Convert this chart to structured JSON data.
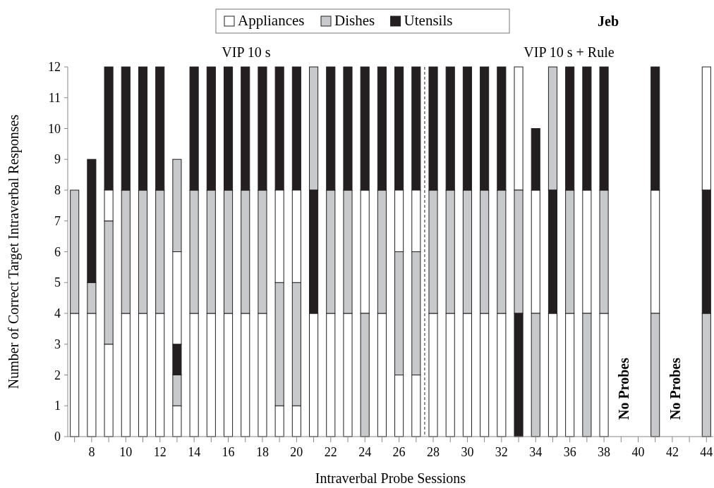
{
  "chart_data": {
    "type": "bar",
    "title": "Jeb",
    "xlabel": "Intraverbal Probe Sessions",
    "ylabel": "Number of Correct Target Intraverbal Responses",
    "x": [
      7,
      8,
      9,
      10,
      11,
      12,
      13,
      14,
      15,
      16,
      17,
      18,
      19,
      20,
      21,
      22,
      23,
      24,
      25,
      26,
      27,
      28,
      29,
      30,
      31,
      32,
      33,
      34,
      35,
      36,
      37,
      38,
      41,
      44
    ],
    "series": [
      {
        "name": "Appliances",
        "color": "#ffffff",
        "base": [
          0,
          0,
          0,
          0,
          0,
          0,
          0,
          0,
          0,
          0,
          0,
          0,
          0,
          0,
          0,
          0,
          0,
          4,
          0,
          0,
          0,
          0,
          0,
          0,
          0,
          0,
          8,
          4,
          0,
          0,
          4,
          0,
          4,
          8
        ],
        "values": [
          4,
          4,
          3,
          4,
          4,
          4,
          1,
          4,
          4,
          4,
          4,
          4,
          1,
          1,
          4,
          4,
          4,
          4,
          4,
          2,
          2,
          4,
          4,
          4,
          4,
          4,
          4,
          4,
          4,
          4,
          4,
          4,
          4,
          4
        ]
      },
      {
        "name": "Dishes",
        "color": "#c8c9cb",
        "base": [
          4,
          4,
          3,
          4,
          4,
          4,
          1,
          4,
          4,
          4,
          4,
          4,
          1,
          1,
          8,
          4,
          4,
          0,
          4,
          2,
          2,
          4,
          4,
          4,
          4,
          4,
          4,
          0,
          8,
          4,
          0,
          4,
          0,
          0
        ],
        "values": [
          4,
          1,
          4,
          4,
          4,
          4,
          1,
          4,
          4,
          4,
          4,
          4,
          4,
          4,
          4,
          4,
          4,
          4,
          4,
          4,
          4,
          4,
          4,
          4,
          4,
          4,
          4,
          4,
          4,
          4,
          4,
          4,
          4,
          4
        ]
      },
      {
        "name": "Utensils",
        "color": "#231f20",
        "base": [
          null,
          5,
          8,
          8,
          8,
          8,
          2,
          8,
          8,
          8,
          8,
          8,
          8,
          8,
          4,
          8,
          8,
          8,
          8,
          8,
          8,
          8,
          8,
          8,
          8,
          8,
          0,
          8,
          4,
          8,
          8,
          8,
          8,
          4
        ],
        "values": [
          null,
          4,
          4,
          4,
          4,
          4,
          1,
          4,
          4,
          4,
          4,
          4,
          4,
          4,
          4,
          4,
          4,
          4,
          4,
          4,
          4,
          4,
          4,
          4,
          4,
          4,
          4,
          2,
          4,
          4,
          4,
          4,
          4,
          4
        ]
      },
      {
        "color": "#ffffff",
        "base": [
          null,
          null,
          7,
          null,
          null,
          null,
          3,
          null,
          null,
          null,
          null,
          null,
          5,
          5,
          null,
          null,
          null,
          null,
          null,
          6,
          6,
          null,
          null,
          null,
          null,
          null,
          null,
          null,
          null,
          null,
          null,
          null,
          null,
          null
        ],
        "values": [
          null,
          null,
          1,
          null,
          null,
          null,
          3,
          null,
          null,
          null,
          null,
          null,
          3,
          3,
          null,
          null,
          null,
          null,
          null,
          2,
          2,
          null,
          null,
          null,
          null,
          null,
          null,
          null,
          null,
          null,
          null,
          null,
          null,
          null
        ]
      },
      {
        "color": "#c8c9cb",
        "base": [
          null,
          null,
          null,
          null,
          null,
          null,
          6,
          null,
          null,
          null,
          null,
          null,
          null,
          null,
          null,
          null,
          null,
          null,
          null,
          null,
          null,
          null,
          null,
          null,
          null,
          null,
          null,
          null,
          null,
          null,
          null,
          null,
          null,
          null
        ],
        "values": [
          null,
          null,
          null,
          null,
          null,
          null,
          3,
          null,
          null,
          null,
          null,
          null,
          null,
          null,
          null,
          null,
          null,
          null,
          null,
          null,
          null,
          null,
          null,
          null,
          null,
          null,
          null,
          null,
          null,
          null,
          null,
          null,
          null,
          null
        ]
      }
    ],
    "xlim": [
      6.6,
      44.4
    ],
    "xticks": [
      {
        "value": 7,
        "label": null
      },
      8,
      {
        "value": 9,
        "label": null
      },
      10,
      {
        "value": 11,
        "label": null
      },
      12,
      {
        "value": 13,
        "label": null
      },
      14,
      {
        "value": 15,
        "label": null
      },
      16,
      {
        "value": 17,
        "label": null
      },
      18,
      {
        "value": 19,
        "label": null
      },
      20,
      {
        "value": 21,
        "label": null
      },
      22,
      {
        "value": 23,
        "label": null
      },
      24,
      {
        "value": 25,
        "label": null
      },
      26,
      {
        "value": 27,
        "label": null
      },
      28,
      {
        "value": 29,
        "label": null
      },
      30,
      {
        "value": 31,
        "label": null
      },
      32,
      {
        "value": 33,
        "label": null
      },
      34,
      {
        "value": 35,
        "label": null
      },
      36,
      {
        "value": 37,
        "label": null
      },
      38,
      {
        "value": 39,
        "label": null
      },
      40,
      {
        "value": 41,
        "label": null
      },
      42,
      {
        "value": 43,
        "label": null
      },
      44
    ],
    "ylim": [
      0,
      12
    ],
    "yticks": [
      0,
      1,
      2,
      3,
      4,
      5,
      6,
      7,
      8,
      9,
      10,
      11,
      12
    ],
    "ref_lines": [
      {
        "axis": "x",
        "value": 27.5,
        "color": "#555555",
        "line_style": "dashed"
      }
    ],
    "annotations": [
      "VIP 10 s",
      "VIP 10 s + Rule",
      "No Probes",
      "No Probes"
    ],
    "legend": "top",
    "grid": false
  }
}
